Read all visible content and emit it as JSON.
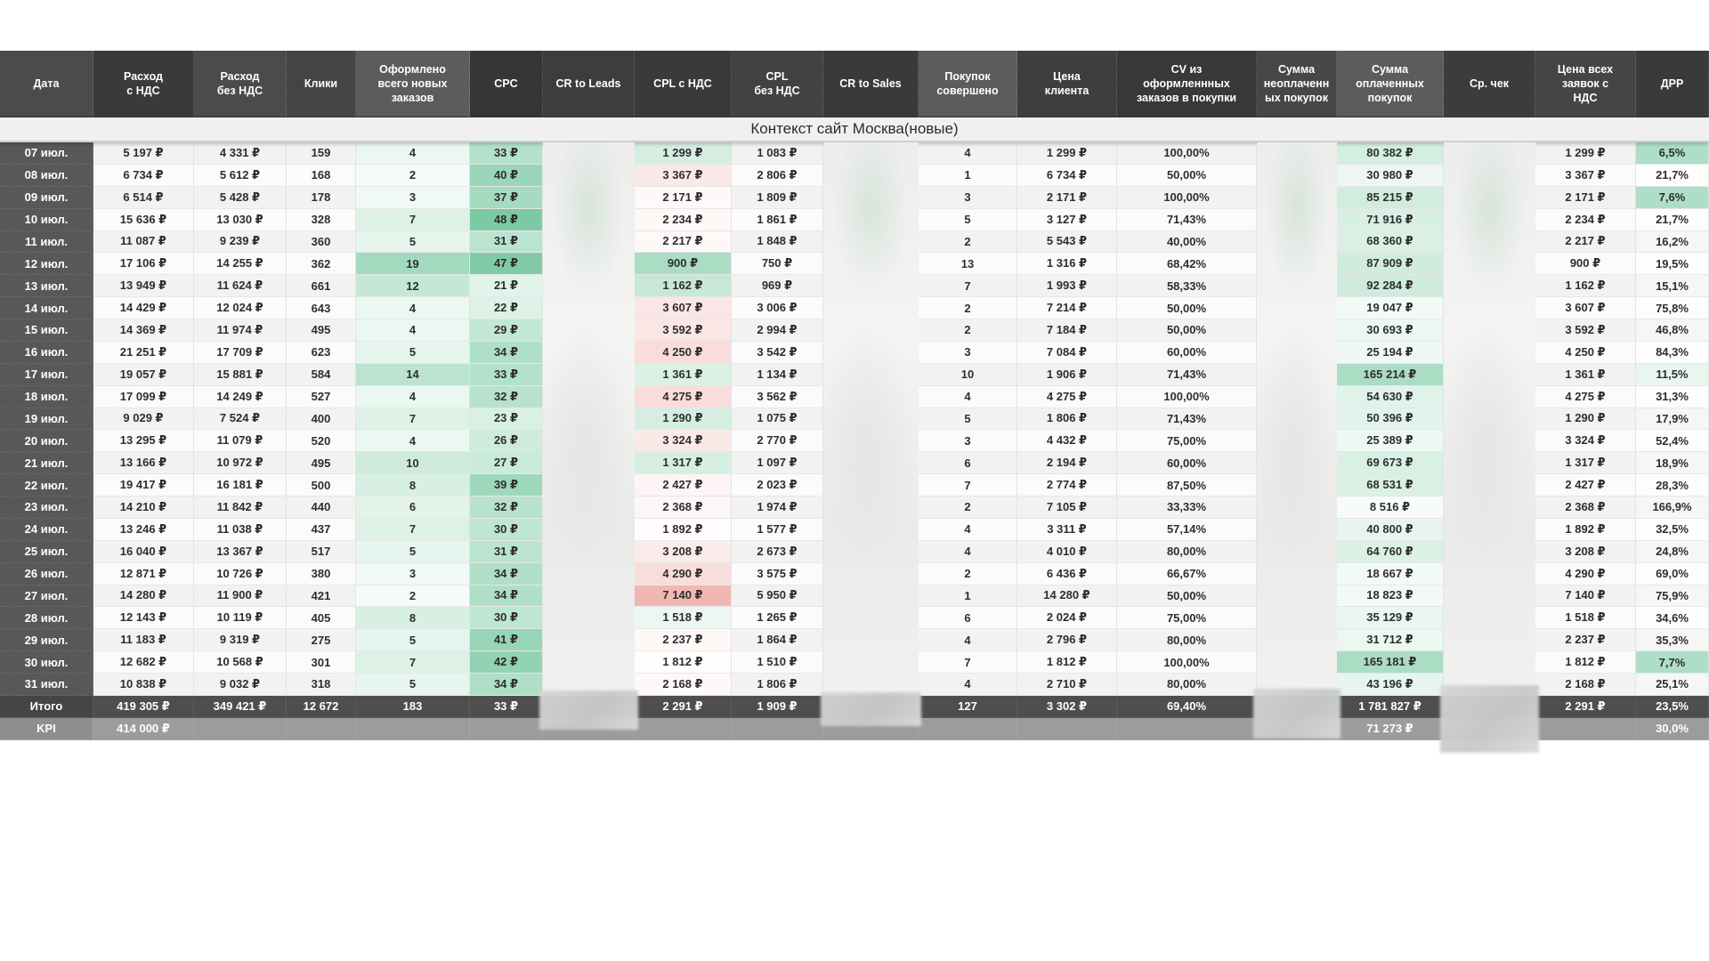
{
  "sheet": {
    "subtitle": "Контекст сайт Москва(новые)",
    "columns": [
      {
        "key": "date",
        "label": "Дата",
        "shade": "#4b4b4b",
        "scale": "date"
      },
      {
        "key": "spend_vat",
        "label": "Расход\nс НДС",
        "shade": "#3a3a3a",
        "scale": "band"
      },
      {
        "key": "spend_no_vat",
        "label": "Расход\nбез НДС",
        "shade": "#4b4b4b",
        "scale": "band"
      },
      {
        "key": "clicks",
        "label": "Клики",
        "shade": "#444444",
        "scale": "band"
      },
      {
        "key": "orders",
        "label": "Оформлено\nвсего новых\nзаказов",
        "shade": "#5c5c5c",
        "scale": "orders"
      },
      {
        "key": "cpc",
        "label": "CPC",
        "shade": "#363636",
        "scale": "cpc"
      },
      {
        "key": "cr_leads",
        "label": "CR to Leads",
        "shade": "#3d3d3d",
        "scale": "blur"
      },
      {
        "key": "cpl_vat",
        "label": "CPL с НДС",
        "shade": "#3a3a3a",
        "scale": "cpl_vat"
      },
      {
        "key": "cpl_no_vat",
        "label": "CPL\nбез НДС",
        "shade": "#424242",
        "scale": "band"
      },
      {
        "key": "cr_sales",
        "label": "CR to Sales",
        "shade": "#3a3a3a",
        "scale": "blur"
      },
      {
        "key": "purchases",
        "label": "Покупок\nсовершено",
        "shade": "#5c5c5c",
        "scale": "band"
      },
      {
        "key": "client_price",
        "label": "Цена\nклиента",
        "shade": "#3e3e3e",
        "scale": "band"
      },
      {
        "key": "cv",
        "label": "CV из\nоформленнных\nзаказов в покупки",
        "shade": "#383838",
        "scale": "band"
      },
      {
        "key": "unpaid_sum",
        "label": "Сумма\nнеоплаченн\nых покупок",
        "shade": "#474747",
        "scale": "blur"
      },
      {
        "key": "paid_sum",
        "label": "Сумма\nоплаченных\nпокупок",
        "shade": "#5c5c5c",
        "scale": "paid_sum"
      },
      {
        "key": "avg_check",
        "label": "Ср. чек",
        "shade": "#3c3c3c",
        "scale": "blur"
      },
      {
        "key": "lead_price_vat",
        "label": "Цена всех\nзаявок с\nНДС",
        "shade": "#454545",
        "scale": "band"
      },
      {
        "key": "drr",
        "label": "ДРР",
        "shade": "#3a3a3a",
        "scale": "drr"
      }
    ],
    "blurred_columns": [
      "cr_leads",
      "cr_sales",
      "unpaid_sum",
      "avg_check"
    ],
    "rows": [
      [
        "07 июл.",
        "5 197 ₽",
        "4 331 ₽",
        "159",
        "4",
        "33 ₽",
        "",
        "1 299 ₽",
        "1 083 ₽",
        "",
        "4",
        "1 299 ₽",
        "100,00%",
        "",
        "80 382 ₽",
        "",
        "1 299 ₽",
        "6,5%"
      ],
      [
        "08 июл.",
        "6 734 ₽",
        "5 612 ₽",
        "168",
        "2",
        "40 ₽",
        "",
        "3 367 ₽",
        "2 806 ₽",
        "",
        "1",
        "6 734 ₽",
        "50,00%",
        "",
        "30 980 ₽",
        "",
        "3 367 ₽",
        "21,7%"
      ],
      [
        "09 июл.",
        "6 514 ₽",
        "5 428 ₽",
        "178",
        "3",
        "37 ₽",
        "",
        "2 171 ₽",
        "1 809 ₽",
        "",
        "3",
        "2 171 ₽",
        "100,00%",
        "",
        "85 215 ₽",
        "",
        "2 171 ₽",
        "7,6%"
      ],
      [
        "10 июл.",
        "15 636 ₽",
        "13 030 ₽",
        "328",
        "7",
        "48 ₽",
        "",
        "2 234 ₽",
        "1 861 ₽",
        "",
        "5",
        "3 127 ₽",
        "71,43%",
        "",
        "71 916 ₽",
        "",
        "2 234 ₽",
        "21,7%"
      ],
      [
        "11 июл.",
        "11 087 ₽",
        "9 239 ₽",
        "360",
        "5",
        "31 ₽",
        "",
        "2 217 ₽",
        "1 848 ₽",
        "",
        "2",
        "5 543 ₽",
        "40,00%",
        "",
        "68 360 ₽",
        "",
        "2 217 ₽",
        "16,2%"
      ],
      [
        "12 июл.",
        "17 106 ₽",
        "14 255 ₽",
        "362",
        "19",
        "47 ₽",
        "",
        "900 ₽",
        "750 ₽",
        "",
        "13",
        "1 316 ₽",
        "68,42%",
        "",
        "87 909 ₽",
        "",
        "900 ₽",
        "19,5%"
      ],
      [
        "13 июл.",
        "13 949 ₽",
        "11 624 ₽",
        "661",
        "12",
        "21 ₽",
        "",
        "1 162 ₽",
        "969 ₽",
        "",
        "7",
        "1 993 ₽",
        "58,33%",
        "",
        "92 284 ₽",
        "",
        "1 162 ₽",
        "15,1%"
      ],
      [
        "14 июл.",
        "14 429 ₽",
        "12 024 ₽",
        "643",
        "4",
        "22 ₽",
        "",
        "3 607 ₽",
        "3 006 ₽",
        "",
        "2",
        "7 214 ₽",
        "50,00%",
        "",
        "19 047 ₽",
        "",
        "3 607 ₽",
        "75,8%"
      ],
      [
        "15 июл.",
        "14 369 ₽",
        "11 974 ₽",
        "495",
        "4",
        "29 ₽",
        "",
        "3 592 ₽",
        "2 994 ₽",
        "",
        "2",
        "7 184 ₽",
        "50,00%",
        "",
        "30 693 ₽",
        "",
        "3 592 ₽",
        "46,8%"
      ],
      [
        "16 июл.",
        "21 251 ₽",
        "17 709 ₽",
        "623",
        "5",
        "34 ₽",
        "",
        "4 250 ₽",
        "3 542 ₽",
        "",
        "3",
        "7 084 ₽",
        "60,00%",
        "",
        "25 194 ₽",
        "",
        "4 250 ₽",
        "84,3%"
      ],
      [
        "17 июл.",
        "19 057 ₽",
        "15 881 ₽",
        "584",
        "14",
        "33 ₽",
        "",
        "1 361 ₽",
        "1 134 ₽",
        "",
        "10",
        "1 906 ₽",
        "71,43%",
        "",
        "165 214 ₽",
        "",
        "1 361 ₽",
        "11,5%"
      ],
      [
        "18 июл.",
        "17 099 ₽",
        "14 249 ₽",
        "527",
        "4",
        "32 ₽",
        "",
        "4 275 ₽",
        "3 562 ₽",
        "",
        "4",
        "4 275 ₽",
        "100,00%",
        "",
        "54 630 ₽",
        "",
        "4 275 ₽",
        "31,3%"
      ],
      [
        "19 июл.",
        "9 029 ₽",
        "7 524 ₽",
        "400",
        "7",
        "23 ₽",
        "",
        "1 290 ₽",
        "1 075 ₽",
        "",
        "5",
        "1 806 ₽",
        "71,43%",
        "",
        "50 396 ₽",
        "",
        "1 290 ₽",
        "17,9%"
      ],
      [
        "20 июл.",
        "13 295 ₽",
        "11 079 ₽",
        "520",
        "4",
        "26 ₽",
        "",
        "3 324 ₽",
        "2 770 ₽",
        "",
        "3",
        "4 432 ₽",
        "75,00%",
        "",
        "25 389 ₽",
        "",
        "3 324 ₽",
        "52,4%"
      ],
      [
        "21 июл.",
        "13 166 ₽",
        "10 972 ₽",
        "495",
        "10",
        "27 ₽",
        "",
        "1 317 ₽",
        "1 097 ₽",
        "",
        "6",
        "2 194 ₽",
        "60,00%",
        "",
        "69 673 ₽",
        "",
        "1 317 ₽",
        "18,9%"
      ],
      [
        "22 июл.",
        "19 417 ₽",
        "16 181 ₽",
        "500",
        "8",
        "39 ₽",
        "",
        "2 427 ₽",
        "2 023 ₽",
        "",
        "7",
        "2 774 ₽",
        "87,50%",
        "",
        "68 531 ₽",
        "",
        "2 427 ₽",
        "28,3%"
      ],
      [
        "23 июл.",
        "14 210 ₽",
        "11 842 ₽",
        "440",
        "6",
        "32 ₽",
        "",
        "2 368 ₽",
        "1 974 ₽",
        "",
        "2",
        "7 105 ₽",
        "33,33%",
        "",
        "8 516 ₽",
        "",
        "2 368 ₽",
        "166,9%"
      ],
      [
        "24 июл.",
        "13 246 ₽",
        "11 038 ₽",
        "437",
        "7",
        "30 ₽",
        "",
        "1 892 ₽",
        "1 577 ₽",
        "",
        "4",
        "3 311 ₽",
        "57,14%",
        "",
        "40 800 ₽",
        "",
        "1 892 ₽",
        "32,5%"
      ],
      [
        "25 июл.",
        "16 040 ₽",
        "13 367 ₽",
        "517",
        "5",
        "31 ₽",
        "",
        "3 208 ₽",
        "2 673 ₽",
        "",
        "4",
        "4 010 ₽",
        "80,00%",
        "",
        "64 760 ₽",
        "",
        "3 208 ₽",
        "24,8%"
      ],
      [
        "26 июл.",
        "12 871 ₽",
        "10 726 ₽",
        "380",
        "3",
        "34 ₽",
        "",
        "4 290 ₽",
        "3 575 ₽",
        "",
        "2",
        "6 436 ₽",
        "66,67%",
        "",
        "18 667 ₽",
        "",
        "4 290 ₽",
        "69,0%"
      ],
      [
        "27 июл.",
        "14 280 ₽",
        "11 900 ₽",
        "421",
        "2",
        "34 ₽",
        "",
        "7 140 ₽",
        "5 950 ₽",
        "",
        "1",
        "14 280 ₽",
        "50,00%",
        "",
        "18 823 ₽",
        "",
        "7 140 ₽",
        "75,9%"
      ],
      [
        "28 июл.",
        "12 143 ₽",
        "10 119 ₽",
        "405",
        "8",
        "30 ₽",
        "",
        "1 518 ₽",
        "1 265 ₽",
        "",
        "6",
        "2 024 ₽",
        "75,00%",
        "",
        "35 129 ₽",
        "",
        "1 518 ₽",
        "34,6%"
      ],
      [
        "29 июл.",
        "11 183 ₽",
        "9 319 ₽",
        "275",
        "5",
        "41 ₽",
        "",
        "2 237 ₽",
        "1 864 ₽",
        "",
        "4",
        "2 796 ₽",
        "80,00%",
        "",
        "31 712 ₽",
        "",
        "2 237 ₽",
        "35,3%"
      ],
      [
        "30 июл.",
        "12 682 ₽",
        "10 568 ₽",
        "301",
        "7",
        "42 ₽",
        "",
        "1 812 ₽",
        "1 510 ₽",
        "",
        "7",
        "1 812 ₽",
        "100,00%",
        "",
        "165 181 ₽",
        "",
        "1 812 ₽",
        "7,7%"
      ],
      [
        "31 июл.",
        "10 838 ₽",
        "9 032 ₽",
        "318",
        "5",
        "34 ₽",
        "",
        "2 168 ₽",
        "1 806 ₽",
        "",
        "4",
        "2 710 ₽",
        "80,00%",
        "",
        "43 196 ₽",
        "",
        "2 168 ₽",
        "25,1%"
      ]
    ],
    "totals": [
      "Итого",
      "419 305 ₽",
      "349 421 ₽",
      "12 672",
      "183",
      "33 ₽",
      "",
      "2 291 ₽",
      "1 909 ₽",
      "",
      "127",
      "3 302 ₽",
      "69,40%",
      "",
      "1 781 827 ₽",
      "",
      "2 291 ₽",
      "23,5%"
    ],
    "kpi": [
      "KPI",
      "414 000 ₽",
      "",
      "",
      "",
      "",
      "",
      "",
      "",
      "",
      "",
      "",
      "",
      "",
      "71 273 ₽",
      "",
      "",
      "30,0%"
    ],
    "colors": {
      "scale_green": "#57bb8a",
      "scale_red": "#e67c73"
    }
  }
}
